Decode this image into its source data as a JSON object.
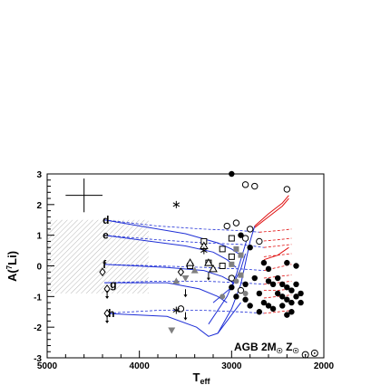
{
  "chart_data": {
    "type": "scatter",
    "title": "",
    "xlabel": "T",
    "xlabel_sub": "eff",
    "ylabel": "A(",
    "ylabel_sup": "7",
    "ylabel_tail": "Li)",
    "xlim": [
      5000,
      2000
    ],
    "ylim": [
      -3,
      3
    ],
    "x_ticks": [
      5000,
      4000,
      3000,
      2000
    ],
    "y_ticks": [
      -3,
      -2,
      -1,
      0,
      1,
      2,
      3
    ],
    "grid": false,
    "annotation": "AGB 2M",
    "annotation_sub": "☉",
    "annotation_tail": " Z",
    "annotation_tail_sub": "☉",
    "curve_labels": [
      {
        "text": "d",
        "x": 4360,
        "y": 1.5
      },
      {
        "text": "e",
        "x": 4360,
        "y": 1.0
      },
      {
        "text": "f",
        "x": 4360,
        "y": 0.05
      },
      {
        "text": "g",
        "x": 4280,
        "y": -0.6
      },
      {
        "text": "h",
        "x": 4300,
        "y": -1.55
      }
    ],
    "series": [
      {
        "kind": "model-solid",
        "color": "#1f2fd6",
        "tracks": [
          [
            [
              4380,
              1.5
            ],
            [
              3500,
              1.05
            ],
            [
              3150,
              0.75
            ],
            [
              3000,
              0.55
            ],
            [
              2900,
              0.35
            ]
          ],
          [
            [
              4380,
              1.0
            ],
            [
              3500,
              0.65
            ],
            [
              3200,
              0.45
            ],
            [
              3050,
              0.2
            ],
            [
              2950,
              -0.05
            ]
          ],
          [
            [
              4380,
              0.05
            ],
            [
              3700,
              -0.05
            ],
            [
              3300,
              -0.15
            ],
            [
              3100,
              -0.35
            ],
            [
              2980,
              -0.55
            ]
          ],
          [
            [
              4380,
              -0.55
            ],
            [
              3700,
              -0.55
            ],
            [
              3350,
              -0.75
            ],
            [
              3150,
              -1.0
            ],
            [
              3050,
              -1.2
            ]
          ],
          [
            [
              4380,
              -1.55
            ],
            [
              3700,
              -1.65
            ],
            [
              3380,
              -2.0
            ],
            [
              3250,
              -2.3
            ],
            [
              3150,
              -2.2
            ],
            [
              3000,
              -1.6
            ],
            [
              2900,
              -1.2
            ]
          ]
        ]
      },
      {
        "kind": "model-dashed",
        "color": "#1f2fd6",
        "tracks": [
          [
            [
              4380,
              1.5
            ],
            [
              3800,
              1.3
            ],
            [
              3300,
              1.2
            ],
            [
              2900,
              1.15
            ],
            [
              2700,
              1.1
            ]
          ],
          [
            [
              4380,
              1.0
            ],
            [
              3800,
              0.85
            ],
            [
              3300,
              0.75
            ],
            [
              2900,
              0.7
            ],
            [
              2650,
              0.6
            ]
          ],
          [
            [
              4380,
              0.05
            ],
            [
              3800,
              0.0
            ],
            [
              3300,
              -0.05
            ],
            [
              2900,
              -0.1
            ],
            [
              2650,
              -0.15
            ]
          ],
          [
            [
              4380,
              -0.55
            ],
            [
              3800,
              -0.5
            ],
            [
              3300,
              -0.5
            ],
            [
              2900,
              -0.55
            ],
            [
              2650,
              -0.6
            ]
          ],
          [
            [
              4380,
              -1.55
            ],
            [
              3800,
              -1.45
            ],
            [
              3300,
              -1.45
            ],
            [
              2900,
              -1.5
            ],
            [
              2650,
              -1.55
            ]
          ]
        ]
      },
      {
        "kind": "model-steep",
        "color": "#1f2fd6",
        "tracks": [
          [
            [
              3150,
              -2.2
            ],
            [
              3000,
              -1.4
            ],
            [
              2900,
              -0.6
            ],
            [
              2850,
              0.1
            ],
            [
              2800,
              0.8
            ],
            [
              2750,
              1.3
            ]
          ],
          [
            [
              3250,
              -1.9
            ],
            [
              3050,
              -1.0
            ],
            [
              2950,
              -0.3
            ],
            [
              2880,
              0.4
            ],
            [
              2830,
              0.9
            ]
          ],
          [
            [
              3200,
              -1.2
            ],
            [
              3000,
              -0.7
            ],
            [
              2900,
              -0.1
            ],
            [
              2850,
              0.4
            ]
          ]
        ]
      },
      {
        "kind": "model-red-solid",
        "color": "#e01010",
        "tracks": [
          [
            [
              2750,
              1.3
            ],
            [
              2600,
              1.7
            ],
            [
              2450,
              2.05
            ],
            [
              2380,
              2.3
            ]
          ],
          [
            [
              2750,
              1.25
            ],
            [
              2600,
              1.6
            ],
            [
              2450,
              1.95
            ],
            [
              2380,
              2.2
            ]
          ],
          [
            [
              2650,
              0.2
            ],
            [
              2500,
              0.35
            ],
            [
              2380,
              0.6
            ]
          ]
        ]
      },
      {
        "kind": "model-red-dashed",
        "color": "#e01010",
        "tracks": [
          [
            [
              2700,
              1.1
            ],
            [
              2500,
              1.15
            ],
            [
              2350,
              1.2
            ]
          ],
          [
            [
              2700,
              0.8
            ],
            [
              2500,
              0.85
            ],
            [
              2350,
              0.9
            ]
          ],
          [
            [
              2650,
              0.6
            ],
            [
              2500,
              0.65
            ],
            [
              2350,
              0.7
            ]
          ],
          [
            [
              2650,
              0.3
            ],
            [
              2500,
              0.35
            ],
            [
              2350,
              0.4
            ]
          ],
          [
            [
              2650,
              -0.15
            ],
            [
              2500,
              -0.05
            ],
            [
              2350,
              0.05
            ]
          ],
          [
            [
              2650,
              -0.4
            ],
            [
              2500,
              -0.35
            ],
            [
              2350,
              -0.3
            ]
          ],
          [
            [
              2650,
              -0.6
            ],
            [
              2500,
              -0.55
            ],
            [
              2350,
              -0.5
            ]
          ],
          [
            [
              2650,
              -0.8
            ],
            [
              2500,
              -0.8
            ],
            [
              2350,
              -0.75
            ]
          ],
          [
            [
              2650,
              -1.55
            ],
            [
              2500,
              -1.5
            ],
            [
              2350,
              -1.45
            ]
          ],
          [
            [
              2650,
              -1.05
            ],
            [
              2500,
              -1.0
            ],
            [
              2350,
              -0.95
            ]
          ]
        ]
      },
      {
        "kind": "filled-circle",
        "color": "#000000",
        "points": [
          [
            3000,
            3.0
          ],
          [
            2900,
            1.0
          ],
          [
            2800,
            0.6
          ],
          [
            2700,
            0.8
          ],
          [
            2650,
            0.1
          ],
          [
            2600,
            -0.1
          ],
          [
            2600,
            -0.5
          ],
          [
            2550,
            -0.6
          ],
          [
            2500,
            -0.4
          ],
          [
            2500,
            -0.9
          ],
          [
            2450,
            -0.6
          ],
          [
            2450,
            -1.0
          ],
          [
            2400,
            -0.7
          ],
          [
            2400,
            -1.1
          ],
          [
            2350,
            -0.8
          ],
          [
            2350,
            -1.2
          ],
          [
            2300,
            -0.6
          ],
          [
            2300,
            -1.0
          ],
          [
            2250,
            -0.9
          ],
          [
            2250,
            -1.2
          ],
          [
            2700,
            -0.9
          ],
          [
            2650,
            -1.2
          ],
          [
            2700,
            -1.5
          ],
          [
            2600,
            -1.3
          ],
          [
            2550,
            -1.4
          ],
          [
            2450,
            -1.3
          ],
          [
            2400,
            -1.6
          ],
          [
            2350,
            -1.5
          ],
          [
            2850,
            -0.6
          ],
          [
            2850,
            -1.1
          ],
          [
            2800,
            -1.3
          ],
          [
            2950,
            -1.0
          ],
          [
            3000,
            -0.7
          ],
          [
            2750,
            -0.4
          ],
          [
            2400,
            0.1
          ],
          [
            2300,
            0.0
          ]
        ]
      },
      {
        "kind": "open-circle",
        "color": "#000000",
        "points": [
          [
            2850,
            2.65
          ],
          [
            2750,
            2.6
          ],
          [
            2400,
            2.5
          ],
          [
            3050,
            1.3
          ],
          [
            2950,
            1.4
          ],
          [
            2850,
            0.9
          ],
          [
            2800,
            1.2
          ],
          [
            2700,
            0.8
          ],
          [
            3000,
            -0.4
          ],
          [
            2900,
            -0.8
          ],
          [
            3550,
            -1.4
          ]
        ]
      },
      {
        "kind": "gray-circle",
        "color": "#808080",
        "points": [
          [
            2950,
            -0.5
          ],
          [
            2850,
            -0.9
          ],
          [
            3000,
            0.3
          ],
          [
            3100,
            -1.0
          ]
        ]
      },
      {
        "kind": "open-square",
        "color": "#000000",
        "points": [
          [
            3300,
            0.8
          ],
          [
            3000,
            0.9
          ],
          [
            3100,
            0.55
          ],
          [
            3000,
            0.3
          ],
          [
            3250,
            0.1
          ],
          [
            3450,
            0.0
          ],
          [
            3100,
            0.0
          ]
        ]
      },
      {
        "kind": "gray-square",
        "color": "#808080",
        "points": [
          [
            2950,
            0.55
          ],
          [
            2900,
            0.35
          ],
          [
            3000,
            0.05
          ],
          [
            2900,
            -0.3
          ]
        ]
      },
      {
        "kind": "open-triangle",
        "color": "#000000",
        "points": [
          [
            3300,
            0.65
          ],
          [
            3250,
            0.1
          ],
          [
            3200,
            -0.1
          ],
          [
            3450,
            0.1
          ]
        ]
      },
      {
        "kind": "gray-triangle",
        "color": "#808080",
        "points": [
          [
            3400,
            -0.15
          ],
          [
            3600,
            -0.5
          ]
        ]
      },
      {
        "kind": "gray-triangle-down",
        "color": "#808080",
        "points": [
          [
            3650,
            -2.1
          ],
          [
            3500,
            -0.4
          ]
        ]
      },
      {
        "kind": "open-diamond",
        "color": "#000000",
        "points": [
          [
            4400,
            -0.2
          ],
          [
            3550,
            -0.2
          ],
          [
            4350,
            -1.55
          ],
          [
            4350,
            -0.75
          ]
        ]
      },
      {
        "kind": "star",
        "color": "#000000",
        "points": [
          [
            3600,
            2.0
          ],
          [
            3300,
            0.5
          ],
          [
            3600,
            -1.45
          ]
        ]
      },
      {
        "kind": "upper-limit",
        "color": "#000000",
        "points": [
          [
            3500,
            -0.85
          ],
          [
            4350,
            -0.9
          ],
          [
            4350,
            -1.7
          ],
          [
            3250,
            -0.3
          ],
          [
            3500,
            -1.6
          ]
        ]
      },
      {
        "kind": "sun-symbol",
        "color": "#000000",
        "points": [
          [
            2100,
            -2.85
          ],
          [
            2200,
            -2.9
          ]
        ]
      }
    ],
    "error_bar": {
      "x": 4600,
      "y": 2.3,
      "dx": 200,
      "dy": 0.55
    },
    "hatched_region": {
      "x": [
        5000,
        3900
      ],
      "y": [
        -0.9,
        1.5
      ]
    }
  }
}
